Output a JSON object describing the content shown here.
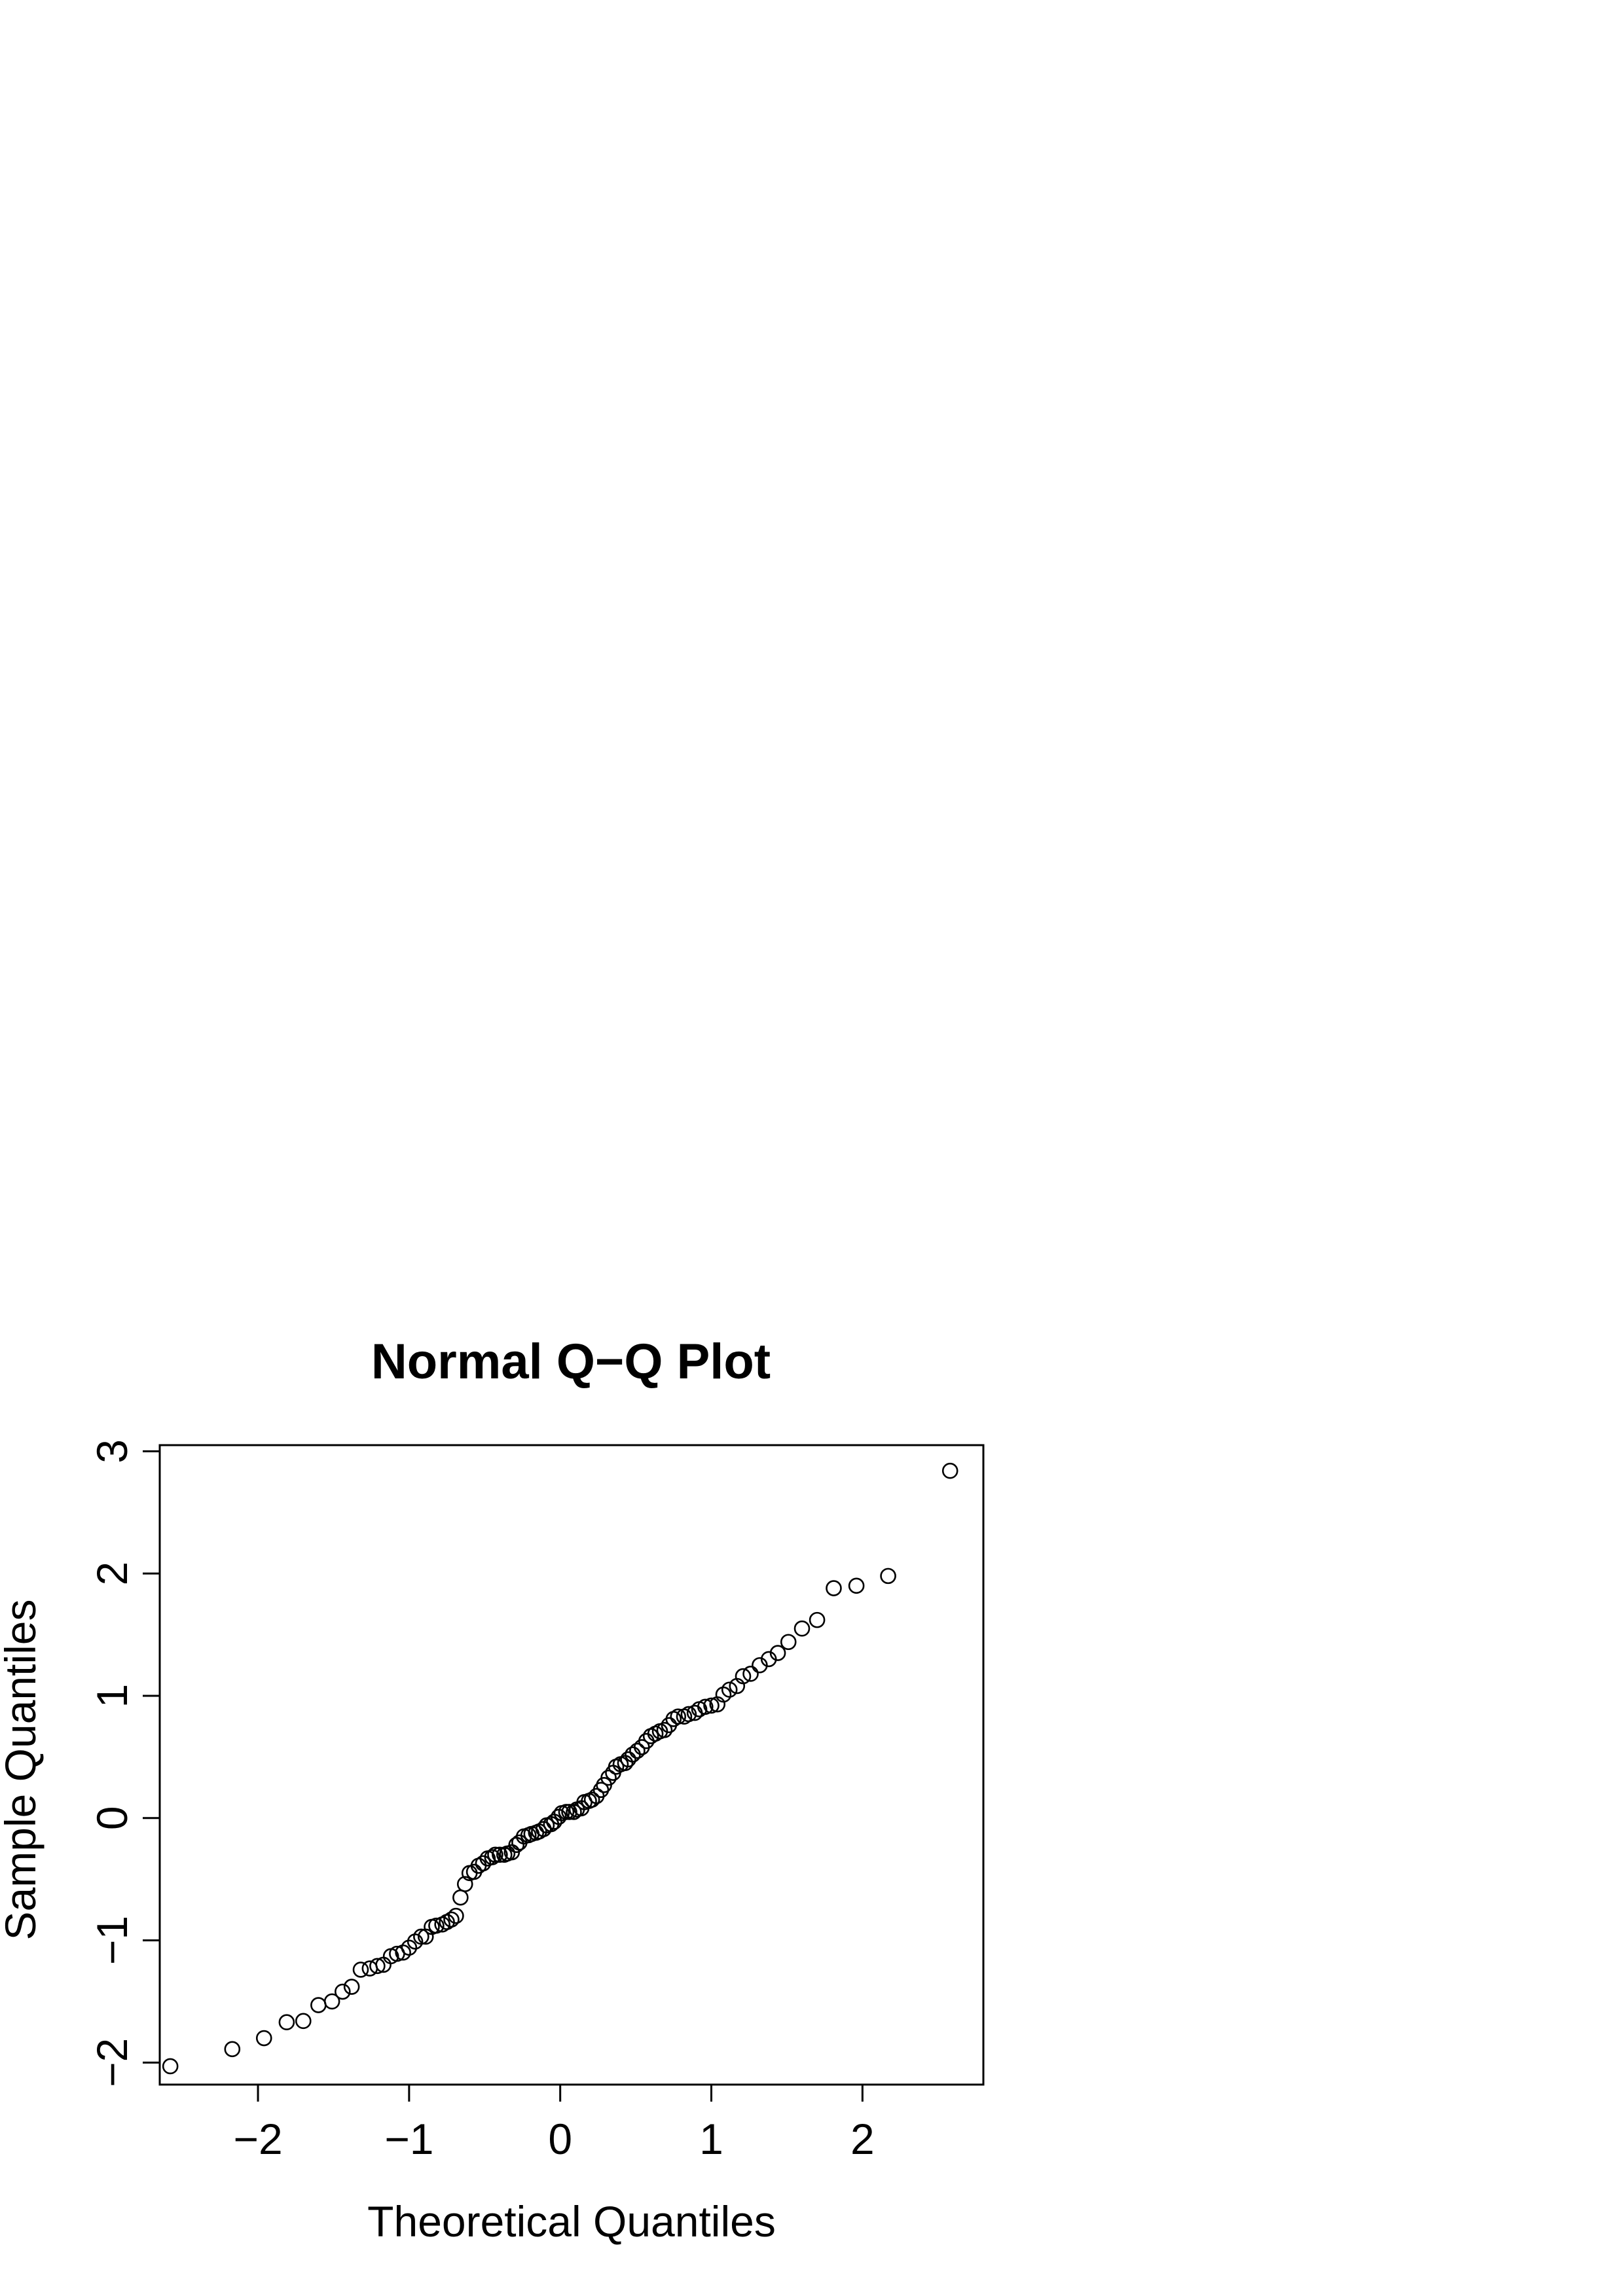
{
  "chart_data": {
    "type": "scatter",
    "title": "Normal Q−Q Plot",
    "xlabel": "Theoretical Quantiles",
    "ylabel": "Sample Quantiles",
    "xlim": [
      -2.65,
      2.8
    ],
    "ylim": [
      -2.18,
      3.05
    ],
    "x_ticks": [
      -2,
      -1,
      0,
      1,
      2
    ],
    "y_ticks": [
      -2,
      -1,
      0,
      1,
      2,
      3
    ],
    "x_tick_labels": [
      "−2",
      "−1",
      "0",
      "1",
      "2"
    ],
    "y_tick_labels": [
      "−2",
      "−1",
      "0",
      "1",
      "2",
      "3"
    ],
    "grid": false,
    "legend": "none",
    "marker": "open-circle",
    "colors": {
      "points": "#000000",
      "frame": "#000000",
      "background": "#ffffff"
    },
    "points": [
      [
        -2.58,
        -2.03
      ],
      [
        -2.17,
        -1.89
      ],
      [
        -1.96,
        -1.8
      ],
      [
        -1.81,
        -1.67
      ],
      [
        -1.7,
        -1.66
      ],
      [
        -1.6,
        -1.53
      ],
      [
        -1.51,
        -1.5
      ],
      [
        -1.44,
        -1.42
      ],
      [
        -1.38,
        -1.38
      ],
      [
        -1.32,
        -1.24
      ],
      [
        -1.26,
        -1.23
      ],
      [
        -1.21,
        -1.21
      ],
      [
        -1.17,
        -1.2
      ],
      [
        -1.12,
        -1.13
      ],
      [
        -1.08,
        -1.11
      ],
      [
        -1.04,
        -1.1
      ],
      [
        -1.0,
        -1.06
      ],
      [
        -0.96,
        -1.01
      ],
      [
        -0.92,
        -0.97
      ],
      [
        -0.89,
        -0.97
      ],
      [
        -0.85,
        -0.89
      ],
      [
        -0.82,
        -0.88
      ],
      [
        -0.78,
        -0.87
      ],
      [
        -0.75,
        -0.85
      ],
      [
        -0.72,
        -0.83
      ],
      [
        -0.69,
        -0.8
      ],
      [
        -0.66,
        -0.65
      ],
      [
        -0.63,
        -0.54
      ],
      [
        -0.6,
        -0.45
      ],
      [
        -0.57,
        -0.44
      ],
      [
        -0.54,
        -0.39
      ],
      [
        -0.51,
        -0.37
      ],
      [
        -0.48,
        -0.33
      ],
      [
        -0.45,
        -0.32
      ],
      [
        -0.43,
        -0.3
      ],
      [
        -0.4,
        -0.3
      ],
      [
        -0.37,
        -0.3
      ],
      [
        -0.35,
        -0.29
      ],
      [
        -0.32,
        -0.28
      ],
      [
        -0.29,
        -0.22
      ],
      [
        -0.27,
        -0.2
      ],
      [
        -0.24,
        -0.15
      ],
      [
        -0.21,
        -0.14
      ],
      [
        -0.19,
        -0.13
      ],
      [
        -0.16,
        -0.12
      ],
      [
        -0.14,
        -0.11
      ],
      [
        -0.11,
        -0.09
      ],
      [
        -0.09,
        -0.06
      ],
      [
        -0.06,
        -0.05
      ],
      [
        -0.04,
        -0.03
      ],
      [
        -0.01,
        0.01
      ],
      [
        0.01,
        0.04
      ],
      [
        0.04,
        0.05
      ],
      [
        0.06,
        0.05
      ],
      [
        0.09,
        0.05
      ],
      [
        0.11,
        0.07
      ],
      [
        0.14,
        0.08
      ],
      [
        0.16,
        0.13
      ],
      [
        0.19,
        0.14
      ],
      [
        0.21,
        0.15
      ],
      [
        0.24,
        0.18
      ],
      [
        0.27,
        0.23
      ],
      [
        0.29,
        0.27
      ],
      [
        0.32,
        0.33
      ],
      [
        0.35,
        0.37
      ],
      [
        0.37,
        0.42
      ],
      [
        0.4,
        0.44
      ],
      [
        0.43,
        0.45
      ],
      [
        0.45,
        0.48
      ],
      [
        0.48,
        0.52
      ],
      [
        0.51,
        0.55
      ],
      [
        0.54,
        0.58
      ],
      [
        0.57,
        0.63
      ],
      [
        0.6,
        0.67
      ],
      [
        0.63,
        0.69
      ],
      [
        0.66,
        0.71
      ],
      [
        0.69,
        0.72
      ],
      [
        0.72,
        0.76
      ],
      [
        0.75,
        0.81
      ],
      [
        0.78,
        0.83
      ],
      [
        0.82,
        0.83
      ],
      [
        0.85,
        0.85
      ],
      [
        0.89,
        0.86
      ],
      [
        0.92,
        0.89
      ],
      [
        0.96,
        0.91
      ],
      [
        1.0,
        0.92
      ],
      [
        1.04,
        0.93
      ],
      [
        1.08,
        1.01
      ],
      [
        1.12,
        1.05
      ],
      [
        1.17,
        1.08
      ],
      [
        1.21,
        1.16
      ],
      [
        1.26,
        1.18
      ],
      [
        1.32,
        1.25
      ],
      [
        1.38,
        1.3
      ],
      [
        1.44,
        1.35
      ],
      [
        1.51,
        1.44
      ],
      [
        1.6,
        1.55
      ],
      [
        1.7,
        1.62
      ],
      [
        1.81,
        1.88
      ],
      [
        1.96,
        1.9
      ],
      [
        2.17,
        1.98
      ],
      [
        2.58,
        2.84
      ]
    ]
  }
}
